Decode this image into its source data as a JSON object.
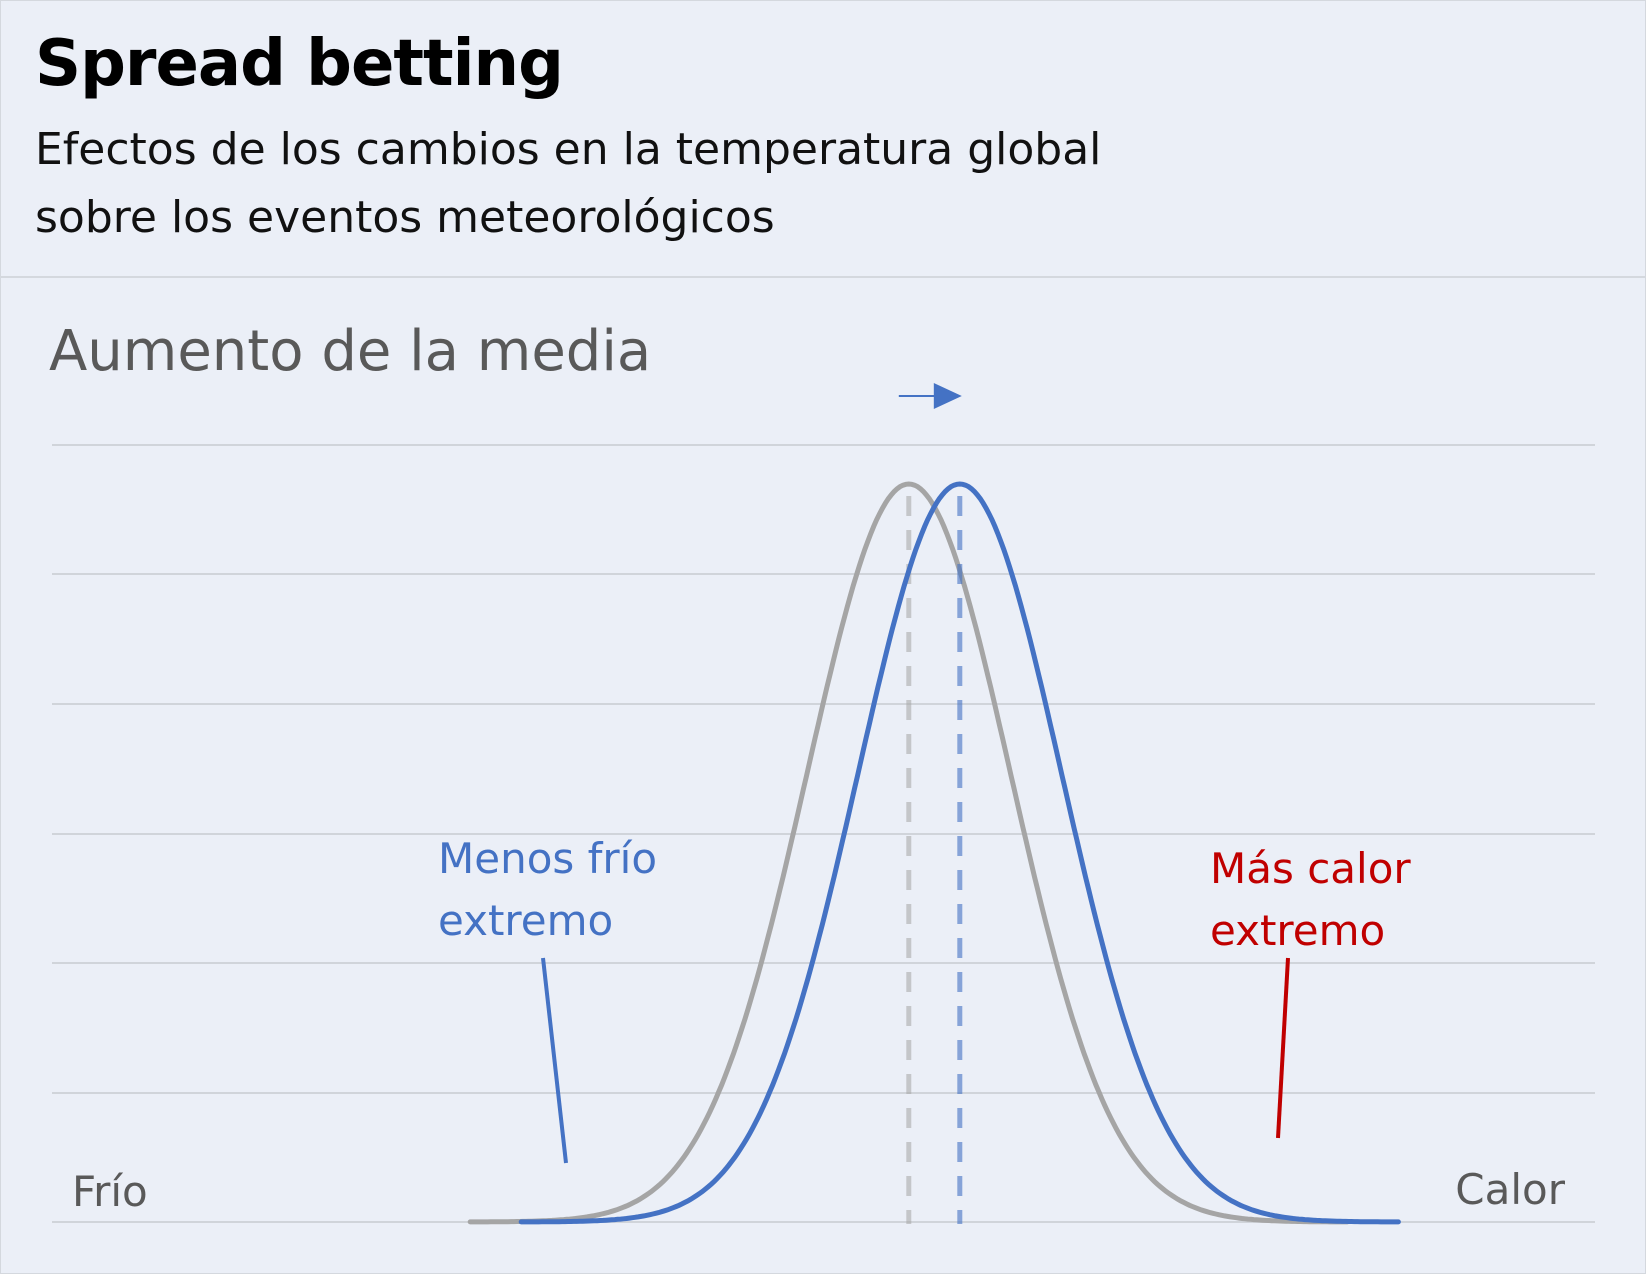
{
  "header": {
    "title": "Spread betting",
    "subtitle_line1": "Efectos de los cambios en la temperatura global",
    "subtitle_line2": "sobre los eventos meteorológicos"
  },
  "chart_data": {
    "type": "line",
    "panel_title": "Aumento de la media",
    "x_left_label": "Frío",
    "x_right_label": "Calor",
    "grid": true,
    "series": [
      {
        "name": "",
        "mean": 0.0,
        "sd": 1.0,
        "color": "#a5a5a5",
        "x_range": [
          -4.3,
          4.3
        ]
      },
      {
        "name": "",
        "mean": 0.5,
        "sd": 1.0,
        "color": "#4472c4",
        "x_range": [
          -3.8,
          4.8
        ]
      }
    ],
    "xlim": [
      -8.4,
      6.6
    ],
    "annotations": [
      {
        "text_line1": "Menos frío",
        "text_line2": "extremo",
        "color": "#4472c4",
        "points_to_x": -2.9
      },
      {
        "text_line1": "Más calor",
        "text_line2": "extremo",
        "color": "#c00000",
        "points_to_x": 3.6
      }
    ],
    "shift_arrow_color": "#4472c4"
  }
}
